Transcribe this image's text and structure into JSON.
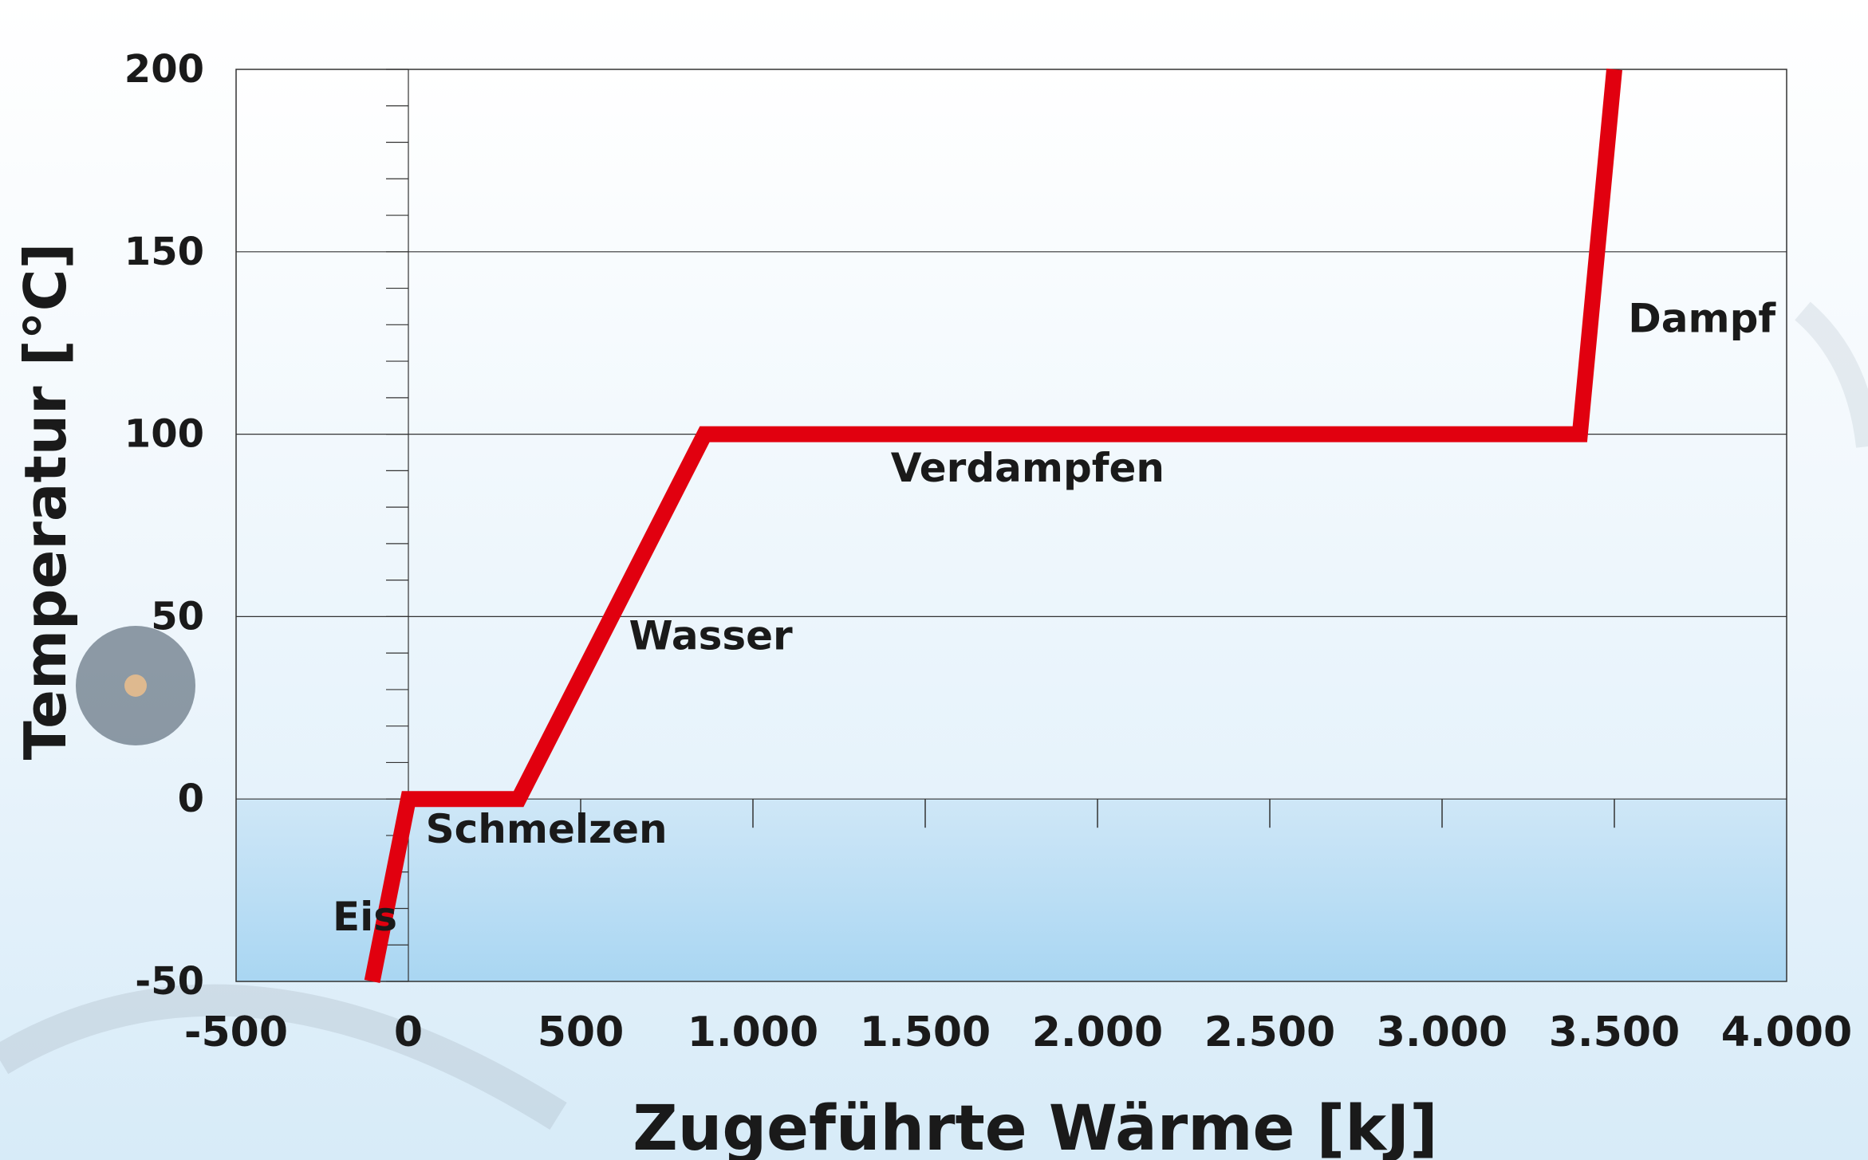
{
  "chart_data": {
    "type": "line",
    "title": "",
    "xlabel": "Zugeführte Wärme [kJ]",
    "ylabel": "Temperatur [°C]",
    "xlim": [
      -500,
      4000
    ],
    "ylim": [
      -50,
      200
    ],
    "x_ticks": [
      -500,
      0,
      500,
      1000,
      1500,
      2000,
      2500,
      3000,
      3500,
      4000
    ],
    "x_tick_labels": [
      "-500",
      "0",
      "500",
      "1.000",
      "1.500",
      "2.000",
      "2.500",
      "3.000",
      "3.500",
      "4.000"
    ],
    "y_ticks": [
      -50,
      0,
      50,
      100,
      150,
      200
    ],
    "y_tick_labels": [
      "-50",
      "0",
      "50",
      "100",
      "150",
      "200"
    ],
    "grid": true,
    "series": [
      {
        "color": "#e1000f",
        "x": [
          -105,
          0,
          320,
          860,
          3400,
          3500
        ],
        "y": [
          -50,
          0,
          0,
          100,
          100,
          200
        ]
      }
    ],
    "annotations": [
      {
        "text": "Eis",
        "x": -220,
        "y": -36
      },
      {
        "text": "Schmelzen",
        "x": 50,
        "y": -12
      },
      {
        "text": "Wasser",
        "x": 640,
        "y": 41
      },
      {
        "text": "Verdampfen",
        "x": 1400,
        "y": 87
      },
      {
        "text": "Dampf",
        "x": 3540,
        "y": 128
      }
    ]
  }
}
